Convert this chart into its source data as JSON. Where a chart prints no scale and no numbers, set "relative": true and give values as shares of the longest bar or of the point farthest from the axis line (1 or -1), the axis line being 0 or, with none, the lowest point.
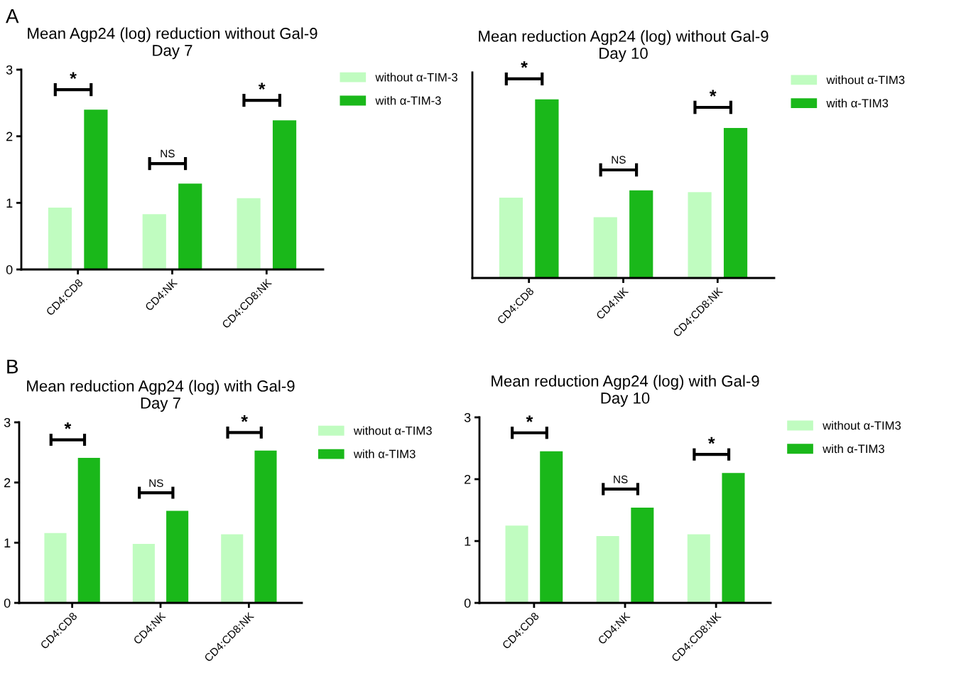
{
  "chart_data": [
    {
      "type": "bar",
      "title": "Mean Agp24 (log) reduction without Gal-9\nDay 7",
      "categories": [
        "CD4:CD8",
        "CD4:NK",
        "CD4:CD8:NK"
      ],
      "series": [
        {
          "name": "without α-TIM-3",
          "color": "#c0fcc0",
          "values": [
            0.93,
            0.83,
            1.07
          ]
        },
        {
          "name": "with α-TIM-3",
          "color": "#1ab81a",
          "values": [
            2.4,
            1.29,
            2.24
          ]
        }
      ],
      "ylim": [
        0,
        3
      ],
      "yticks": [
        0,
        1,
        2,
        3
      ],
      "grid": false,
      "legend": "top right",
      "annotations": [
        "A",
        "*",
        "NS",
        "*"
      ]
    },
    {
      "type": "bar",
      "title": "Mean reduction Agp24 (log) without Gal-9\nDay 10",
      "categories": [
        "CD4:CD8",
        "CD4:NK",
        "CD4:CD8:NK"
      ],
      "relative": true,
      "series": [
        {
          "name": "without α-TIM3",
          "color": "#c0fcc0",
          "values": [
            0.45,
            0.34,
            0.48
          ]
        },
        {
          "name": "with α-TIM3",
          "color": "#1ab81a",
          "values": [
            1,
            0.49,
            0.84
          ]
        }
      ],
      "grid": false,
      "legend": "top right",
      "annotations": [
        "*",
        "NS",
        "*"
      ]
    },
    {
      "type": "bar",
      "title": "Mean reduction Agp24 (log) with Gal-9\nDay 7",
      "categories": [
        "CD4:CD8",
        "CD4:NK",
        "CD4:CD8:NK"
      ],
      "series": [
        {
          "name": "without α-TIM3",
          "color": "#c0fcc0",
          "values": [
            1.16,
            0.98,
            1.14
          ]
        },
        {
          "name": "with α-TIM3",
          "color": "#1ab81a",
          "values": [
            2.41,
            1.53,
            2.53
          ]
        }
      ],
      "ylim": [
        0,
        3
      ],
      "yticks": [
        0,
        1,
        2,
        3
      ],
      "grid": false,
      "legend": "top right",
      "annotations": [
        "B",
        "*",
        "NS",
        "*"
      ]
    },
    {
      "type": "bar",
      "title": "Mean reduction Agp24 (log) with Gal-9\nDay 10",
      "categories": [
        "CD4:CD8",
        "CD4:NK",
        "CD4:CD8:NK"
      ],
      "series": [
        {
          "name": "without α-TIM3",
          "color": "#c0fcc0",
          "values": [
            1.25,
            1.08,
            1.11
          ]
        },
        {
          "name": "with α-TIM3",
          "color": "#1ab81a",
          "values": [
            2.45,
            1.54,
            2.1
          ]
        }
      ],
      "ylim": [
        0,
        3
      ],
      "yticks": [
        0,
        1,
        2,
        3
      ],
      "grid": false,
      "legend": "top right",
      "annotations": [
        "*",
        "NS",
        "*"
      ]
    }
  ]
}
